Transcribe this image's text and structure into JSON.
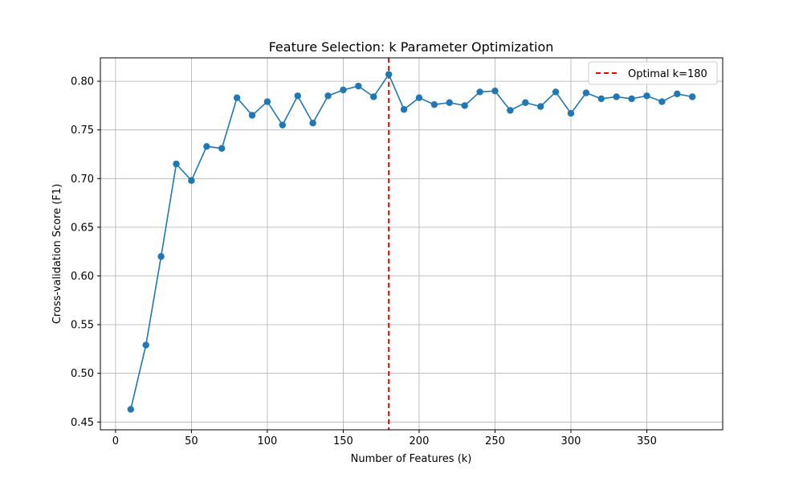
{
  "chart_data": {
    "type": "line",
    "title": "Feature Selection: k Parameter Optimization",
    "xlabel": "Number of Features (k)",
    "ylabel": "Cross-validation Score (F1)",
    "xlim": [
      -10,
      400
    ],
    "ylim": [
      0.442,
      0.824
    ],
    "xticks": [
      0,
      50,
      100,
      150,
      200,
      250,
      300,
      350
    ],
    "xtick_labels": [
      "0",
      "50",
      "100",
      "150",
      "200",
      "250",
      "300",
      "350"
    ],
    "yticks": [
      0.45,
      0.5,
      0.55,
      0.6,
      0.65,
      0.7,
      0.75,
      0.8
    ],
    "ytick_labels": [
      "0.45",
      "0.50",
      "0.55",
      "0.60",
      "0.65",
      "0.70",
      "0.75",
      "0.80"
    ],
    "grid": true,
    "legend_position": "top-right",
    "series": [
      {
        "color": "#1f77b4",
        "marker": "circle",
        "x": [
          10,
          20,
          30,
          40,
          50,
          60,
          70,
          80,
          90,
          100,
          110,
          120,
          130,
          140,
          150,
          160,
          170,
          180,
          190,
          200,
          210,
          220,
          230,
          240,
          250,
          260,
          270,
          280,
          290,
          300,
          310,
          320,
          330,
          340,
          350,
          360,
          370,
          380
        ],
        "y": [
          0.463,
          0.529,
          0.62,
          0.715,
          0.698,
          0.733,
          0.731,
          0.783,
          0.765,
          0.779,
          0.755,
          0.785,
          0.757,
          0.785,
          0.791,
          0.795,
          0.784,
          0.807,
          0.771,
          0.783,
          0.776,
          0.778,
          0.775,
          0.789,
          0.79,
          0.77,
          0.778,
          0.774,
          0.789,
          0.767,
          0.788,
          0.782,
          0.784,
          0.782,
          0.785,
          0.779,
          0.787,
          0.784
        ]
      }
    ],
    "reference_line": {
      "orientation": "vertical",
      "x": 180,
      "label": "Optimal k=180",
      "color": "#ff0000",
      "style": "dashed"
    }
  }
}
